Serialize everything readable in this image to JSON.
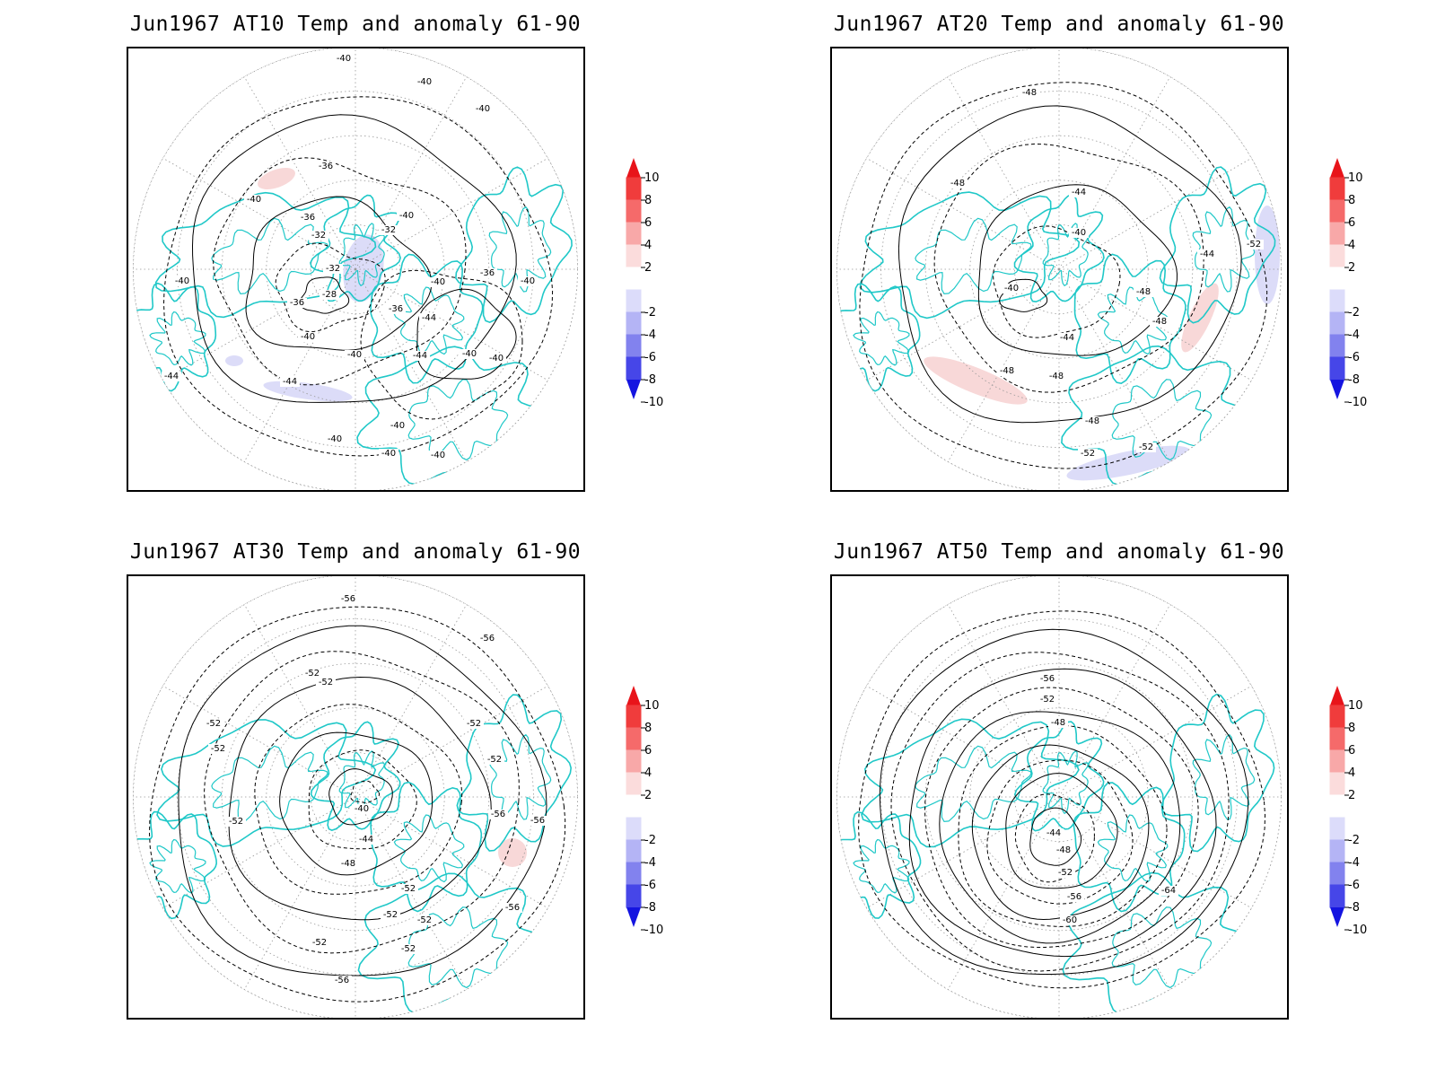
{
  "panels": [
    {
      "title": "Jun1967 AT10 Temp and anomaly 61-90",
      "contour_labels": [
        "-40",
        "-40",
        "-40",
        "-36",
        "-40",
        "-36",
        "-32",
        "-32",
        "-40",
        "-32",
        "-28",
        "-36",
        "-40",
        "-36",
        "-40",
        "-36",
        "-40",
        "-44",
        "-40",
        "-40",
        "-44",
        "-44",
        "-40",
        "-40",
        "-44",
        "-40",
        "-40",
        "-40",
        "-40"
      ],
      "anomaly_patches": [
        {
          "sign": "warm",
          "level": 2
        },
        {
          "sign": "cold",
          "level": 2
        },
        {
          "sign": "cold",
          "level": 2
        },
        {
          "sign": "cold",
          "level": 2
        }
      ]
    },
    {
      "title": "Jun1967 AT20 Temp and anomaly 61-90",
      "contour_labels": [
        "-48",
        "-48",
        "-44",
        "-40",
        "-40",
        "-44",
        "-48",
        "-48",
        "-44",
        "-48",
        "-48",
        "-48",
        "-52",
        "-52",
        "-52"
      ],
      "anomaly_patches": [
        {
          "sign": "warm",
          "level": 2
        },
        {
          "sign": "warm",
          "level": 2
        },
        {
          "sign": "cold",
          "level": 2
        },
        {
          "sign": "cold",
          "level": 2
        }
      ]
    },
    {
      "title": "Jun1967 AT30 Temp and anomaly 61-90",
      "contour_labels": [
        "-56",
        "-56",
        "-52",
        "-52",
        "-52",
        "-52",
        "-52",
        "-52",
        "-40",
        "-44",
        "-48",
        "-52",
        "-56",
        "-52",
        "-56",
        "-52",
        "-52",
        "-52",
        "-56",
        "-52",
        "-56"
      ],
      "anomaly_patches": [
        {
          "sign": "warm",
          "level": 2
        }
      ]
    },
    {
      "title": "Jun1967 AT50 Temp and anomaly 61-90",
      "contour_labels": [
        "-56",
        "-52",
        "-48",
        "-44",
        "-48",
        "-52",
        "-56",
        "-60",
        "-64"
      ],
      "anomaly_patches": []
    }
  ],
  "colorbar": {
    "ticks": [
      "10",
      "8",
      "6",
      "4",
      "2",
      "-2",
      "-4",
      "-6",
      "-8",
      "-10"
    ],
    "colors": [
      "#e8141a",
      "#f03c3c",
      "#f56a6a",
      "#f8a8a8",
      "#fbdcdc",
      "#ffffff",
      "#dcdcfa",
      "#b4b4f5",
      "#8282ee",
      "#4646e8",
      "#1414e0"
    ],
    "top_arrow_color": "#e8141a",
    "bottom_arrow_color": "#1414e0"
  },
  "colors": {
    "coastline": "#20c8c8",
    "contour": "#000000",
    "grid": "#999999",
    "warm_anomaly": "#f8d8d8",
    "cold_anomaly": "#dcdcf8"
  }
}
